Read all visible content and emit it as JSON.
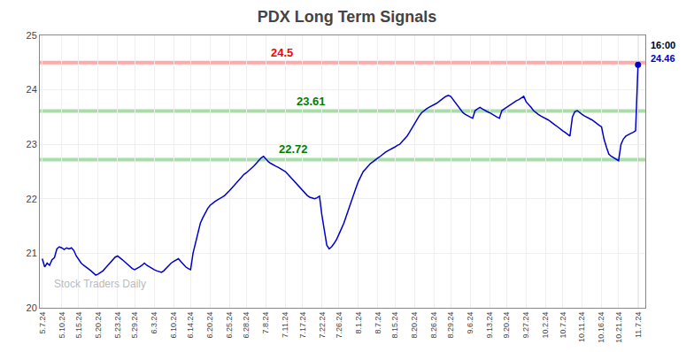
{
  "chart_data": {
    "type": "line",
    "title": "PDX Long Term Signals",
    "color": "#0000cc",
    "grid": true,
    "ylim": [
      20,
      25
    ],
    "yticks": [
      20,
      21,
      22,
      23,
      24,
      25
    ],
    "reference_lines": [
      {
        "value": 24.5,
        "label": "24.5",
        "color": "#ffaaaa",
        "label_color": "red"
      },
      {
        "value": 23.61,
        "label": "23.61",
        "color": "#aaddaa",
        "label_color": "green"
      },
      {
        "value": 22.72,
        "label": "22.72",
        "color": "#aaddaa",
        "label_color": "green"
      }
    ],
    "annotations": [
      {
        "text": "16:00",
        "color": "black"
      },
      {
        "text": "24.46",
        "color": "#0000cc"
      }
    ],
    "watermark": {
      "text": "Stock Traders Daily",
      "color": "#bbbbbb"
    },
    "categories": [
      "5.7.24",
      null,
      null,
      null,
      null,
      null,
      null,
      null,
      "5.10.24",
      null,
      null,
      null,
      null,
      null,
      null,
      "5.15.24",
      null,
      null,
      null,
      null,
      null,
      null,
      null,
      "5.20.24",
      null,
      null,
      null,
      null,
      null,
      null,
      null,
      "5.23.24",
      null,
      null,
      null,
      null,
      null,
      null,
      "5.29.24",
      null,
      null,
      null,
      null,
      null,
      null,
      null,
      "6.3.24",
      null,
      null,
      null,
      null,
      null,
      null,
      null,
      "6.10.24",
      null,
      null,
      null,
      null,
      null,
      null,
      "6.14.24",
      null,
      null,
      null,
      null,
      null,
      null,
      null,
      "6.20.24",
      null,
      null,
      null,
      null,
      null,
      null,
      null,
      "6.25.24",
      null,
      null,
      null,
      null,
      null,
      null,
      "6.28.24",
      null,
      null,
      null,
      null,
      null,
      null,
      null,
      "7.8.24",
      null,
      null,
      null,
      null,
      null,
      null,
      null,
      "7.11.24",
      null,
      null,
      null,
      null,
      null,
      null,
      "7.17.24",
      null,
      null,
      null,
      null,
      null,
      null,
      null,
      "7.22.24",
      null,
      null,
      null,
      null,
      null,
      null,
      "7.26.24",
      null,
      null,
      null,
      null,
      null,
      null,
      null,
      "8.1.24",
      null,
      null,
      null,
      null,
      null,
      null,
      null,
      "8.7.24",
      null,
      null,
      null,
      null,
      null,
      null,
      "8.15.24",
      null,
      null,
      null,
      null,
      null,
      null,
      null,
      "8.20.24",
      null,
      null,
      null,
      null,
      null,
      null,
      null,
      "8.26.24",
      null,
      null,
      null,
      null,
      null,
      null,
      "8.29.24",
      null,
      null,
      null,
      null,
      null,
      null,
      null,
      "9.6.24",
      null,
      null,
      null,
      null,
      null,
      null,
      null,
      "9.13.24",
      null,
      null,
      null,
      null,
      null,
      null,
      "9.20.24",
      null,
      null,
      null,
      null,
      null,
      null,
      null,
      "9.27.24",
      null,
      null,
      null,
      null,
      null,
      null,
      null,
      "10.2.24",
      null,
      null,
      null,
      null,
      null,
      null,
      "10.7.24",
      null,
      null,
      null,
      null,
      null,
      null,
      null,
      "10.11.24",
      null,
      null,
      null,
      null,
      null,
      null,
      null,
      "10.16.24",
      null,
      null,
      null,
      null,
      null,
      null,
      "10.21.24",
      null,
      null,
      null,
      null,
      null,
      null,
      null,
      "11.7.24"
    ],
    "values": [
      20.9,
      20.75,
      20.82,
      20.78,
      20.88,
      20.92,
      21.08,
      21.12,
      21.1,
      21.07,
      21.1,
      21.08,
      21.1,
      21.05,
      20.95,
      20.88,
      20.82,
      20.78,
      20.75,
      20.72,
      20.68,
      20.64,
      20.6,
      20.62,
      20.65,
      20.68,
      20.73,
      20.78,
      20.83,
      20.88,
      20.93,
      20.95,
      20.92,
      20.88,
      20.84,
      20.8,
      20.76,
      20.72,
      20.7,
      20.72,
      20.75,
      20.78,
      20.82,
      20.78,
      20.75,
      20.72,
      20.7,
      20.68,
      20.66,
      20.65,
      20.68,
      20.73,
      20.78,
      20.82,
      20.85,
      20.88,
      20.9,
      20.85,
      20.8,
      20.75,
      20.72,
      20.7,
      21.0,
      21.2,
      21.4,
      21.55,
      21.65,
      21.75,
      21.82,
      21.88,
      21.92,
      21.95,
      21.98,
      22.0,
      22.03,
      22.06,
      22.1,
      22.15,
      22.2,
      22.25,
      22.3,
      22.35,
      22.4,
      22.45,
      22.48,
      22.52,
      22.55,
      22.6,
      22.65,
      22.7,
      22.75,
      22.78,
      22.72,
      22.68,
      22.65,
      22.62,
      22.6,
      22.58,
      22.55,
      22.52,
      22.5,
      22.45,
      22.4,
      22.35,
      22.3,
      22.25,
      22.2,
      22.15,
      22.1,
      22.06,
      22.03,
      22.02,
      22.0,
      22.02,
      22.05,
      21.7,
      21.4,
      21.15,
      21.08,
      21.12,
      21.18,
      21.25,
      21.35,
      21.45,
      21.55,
      21.68,
      21.82,
      21.95,
      22.08,
      22.2,
      22.32,
      22.42,
      22.5,
      22.55,
      22.6,
      22.65,
      22.68,
      22.72,
      22.75,
      22.78,
      22.82,
      22.85,
      22.88,
      22.9,
      22.92,
      22.95,
      22.98,
      23.0,
      23.05,
      23.1,
      23.15,
      23.22,
      23.3,
      23.38,
      23.45,
      23.52,
      23.58,
      23.62,
      23.65,
      23.68,
      23.7,
      23.72,
      23.75,
      23.78,
      23.82,
      23.85,
      23.88,
      23.9,
      23.88,
      23.82,
      23.75,
      23.68,
      23.62,
      23.58,
      23.55,
      23.52,
      23.5,
      23.48,
      23.62,
      23.65,
      23.68,
      23.65,
      23.62,
      23.6,
      23.58,
      23.55,
      23.52,
      23.5,
      23.48,
      23.62,
      23.65,
      23.68,
      23.72,
      23.75,
      23.78,
      23.8,
      23.82,
      23.85,
      23.88,
      23.78,
      23.72,
      23.68,
      23.62,
      23.58,
      23.55,
      23.52,
      23.5,
      23.48,
      23.45,
      23.42,
      23.38,
      23.35,
      23.32,
      23.28,
      23.25,
      23.22,
      23.18,
      23.15,
      23.5,
      23.6,
      23.62,
      23.58,
      23.55,
      23.52,
      23.5,
      23.48,
      23.45,
      23.42,
      23.38,
      23.35,
      23.32,
      23.1,
      22.95,
      22.82,
      22.78,
      22.75,
      22.72,
      22.7,
      23.0,
      23.1,
      23.15,
      23.18,
      23.2,
      23.22,
      23.25,
      24.46
    ]
  }
}
